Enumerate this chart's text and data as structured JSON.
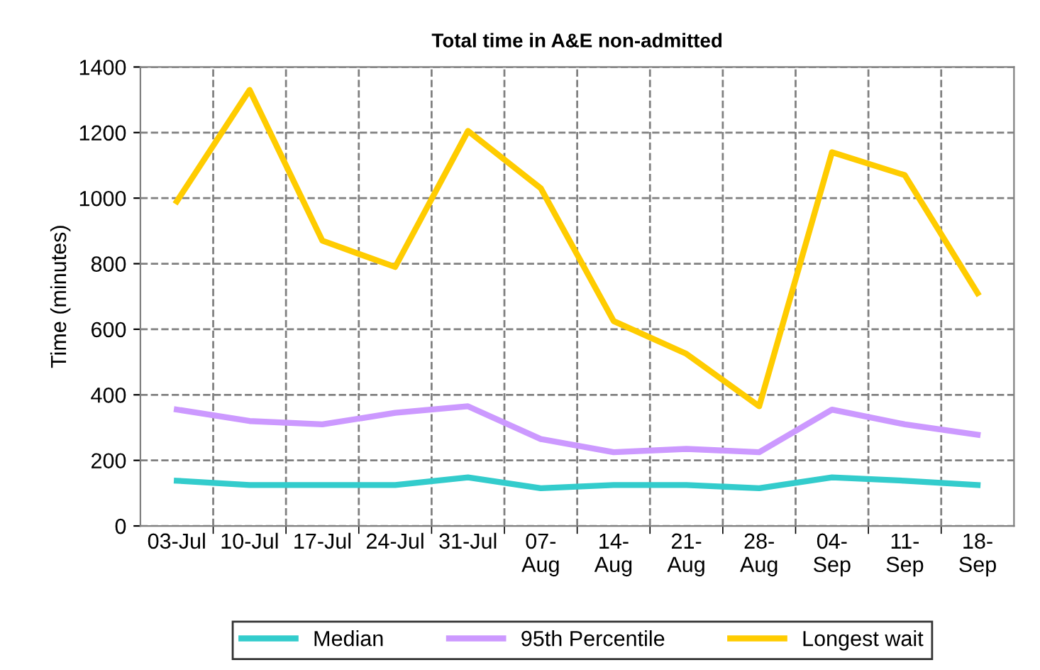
{
  "chart_data": {
    "type": "line",
    "title": "Total time in A&E non-admitted",
    "ylabel": "Time (minutes)",
    "categories": [
      "03-Jul",
      "10-Jul",
      "17-Jul",
      "24-Jul",
      "31-Jul",
      "07-\nAug",
      "14-\nAug",
      "21-\nAug",
      "28-\nAug",
      "04-\nSep",
      "11-\nSep",
      "18-\nSep"
    ],
    "series": [
      {
        "name": "Median",
        "color": "#33cccc",
        "values": [
          138,
          125,
          125,
          125,
          148,
          115,
          125,
          125,
          115,
          148,
          138,
          125
        ]
      },
      {
        "name": "95th Percentile",
        "color": "#cc99ff",
        "values": [
          355,
          320,
          310,
          345,
          365,
          265,
          225,
          235,
          225,
          355,
          310,
          278
        ]
      },
      {
        "name": "Longest wait",
        "color": "#ffcc00",
        "values": [
          990,
          1330,
          870,
          790,
          1205,
          1030,
          625,
          525,
          365,
          1140,
          1070,
          710
        ]
      }
    ],
    "ylim": [
      0,
      1400
    ],
    "yticks": [
      0,
      200,
      400,
      600,
      800,
      1000,
      1200,
      1400
    ],
    "grid": true,
    "legend": "bottom",
    "marker": "none",
    "line_style": "solid"
  }
}
